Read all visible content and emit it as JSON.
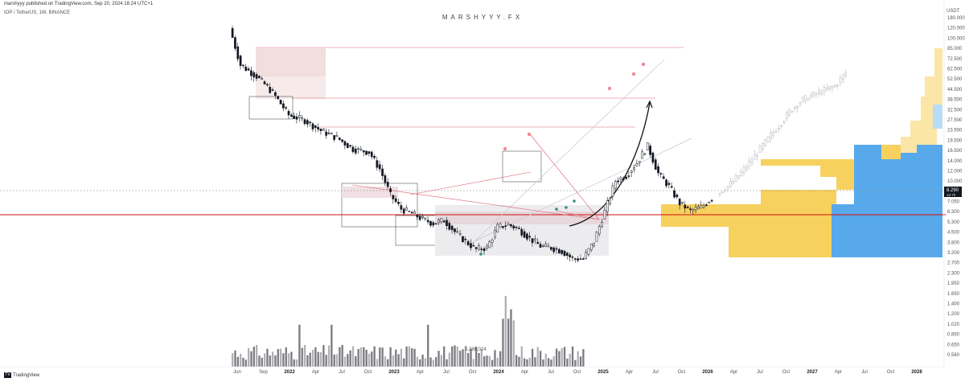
{
  "header": {
    "publish_line": "marshyyy published on TradingView.com, Sep 20, 2024 18:24 UTC+1",
    "symbol_line": "IOP / TetherUS, 1W, BINANCE",
    "watermark": "MARSHYYY.FX",
    "logo_text": "TradingView"
  },
  "chart_data": {
    "type": "candlestick",
    "title": "IOP / TetherUS, 1W, BINANCE",
    "price_axis": {
      "unit_label": "USDT",
      "ticks": [
        "180.000",
        "120.000",
        "100.000",
        "85.000",
        "72.500",
        "62.500",
        "52.500",
        "44.500",
        "38.500",
        "32.500",
        "27.500",
        "23.500",
        "19.500",
        "16.500",
        "14.000",
        "12.000",
        "10.000",
        "8.300",
        "7.050",
        "6.300",
        "5.300",
        "4.500",
        "3.800",
        "3.200",
        "2.700",
        "2.300",
        "1.950",
        "1.650",
        "1.400",
        "1.200",
        "1.020",
        "0.850",
        "0.650",
        "0.560"
      ],
      "current_price": "8.290",
      "current_price_sub": "1d 7h"
    },
    "time_axis": {
      "ticks": [
        "Jun",
        "Sep",
        "2022",
        "Apr",
        "Jul",
        "Oct",
        "2023",
        "Apr",
        "Jul",
        "Oct",
        "2024",
        "Apr",
        "Jul",
        "Oct",
        "2025",
        "Apr",
        "Jul",
        "Oct",
        "2026",
        "Apr",
        "Jul",
        "Oct",
        "2027",
        "Apr",
        "Jul",
        "Oct",
        "2028"
      ],
      "bold_ticks": [
        "2022",
        "2023",
        "2024",
        "2025",
        "2026",
        "2027",
        "2028"
      ]
    },
    "annotations": {
      "volume_label": "3,286,024"
    },
    "grid": false,
    "series": [
      {
        "type": "candles_weekly",
        "path_knots": [
          [
            0,
            150
          ],
          [
            4,
            80
          ],
          [
            10,
            66
          ],
          [
            16,
            50
          ],
          [
            22,
            34
          ],
          [
            28,
            31
          ],
          [
            34,
            26
          ],
          [
            40,
            23
          ],
          [
            46,
            19
          ],
          [
            52,
            18
          ],
          [
            56,
            13.5
          ],
          [
            60,
            8.6
          ],
          [
            64,
            6.8
          ],
          [
            68,
            6.3
          ],
          [
            72,
            5.7
          ],
          [
            76,
            5.3
          ],
          [
            80,
            5.6
          ],
          [
            84,
            4.6
          ],
          [
            88,
            3.9
          ],
          [
            92,
            3.4
          ],
          [
            96,
            3.5
          ],
          [
            100,
            5.0
          ],
          [
            104,
            5.2
          ],
          [
            108,
            4.8
          ],
          [
            112,
            4.1
          ],
          [
            116,
            3.6
          ],
          [
            120,
            3.5
          ],
          [
            124,
            3.3
          ],
          [
            128,
            2.9
          ],
          [
            132,
            2.9
          ],
          [
            136,
            3.9
          ],
          [
            140,
            6.5
          ],
          [
            144,
            11
          ],
          [
            148,
            12
          ],
          [
            152,
            15
          ],
          [
            156,
            20
          ],
          [
            160,
            12.5
          ],
          [
            164,
            10
          ],
          [
            168,
            7.5
          ],
          [
            172,
            6.6
          ],
          [
            176,
            7.0
          ],
          [
            180,
            8.2
          ]
        ]
      },
      {
        "type": "projection",
        "path_knots": [
          [
            182,
            8.8
          ],
          [
            186,
            10
          ],
          [
            190,
            12
          ],
          [
            194,
            15
          ],
          [
            198,
            19
          ],
          [
            202,
            24
          ],
          [
            206,
            30
          ],
          [
            210,
            38
          ],
          [
            214,
            44
          ],
          [
            218,
            48
          ],
          [
            222,
            52
          ],
          [
            226,
            56
          ],
          [
            230,
            70
          ]
        ]
      },
      {
        "type": "volume",
        "relative": true
      }
    ]
  },
  "colors": {
    "candle": "#131722",
    "projection": "#b8b8c0",
    "resistance": "#e06070",
    "support": "#d01010",
    "trendline": "#c8c8cc",
    "volume": "#7a7a80",
    "profile_yellow": "#f7d15e",
    "profile_blue": "#58a9ec",
    "profile_light_yellow": "#fbe6a8",
    "profile_light_blue": "#b8dcf6",
    "marker_red": "#f08a96",
    "marker_teal": "#2f8f7a"
  }
}
